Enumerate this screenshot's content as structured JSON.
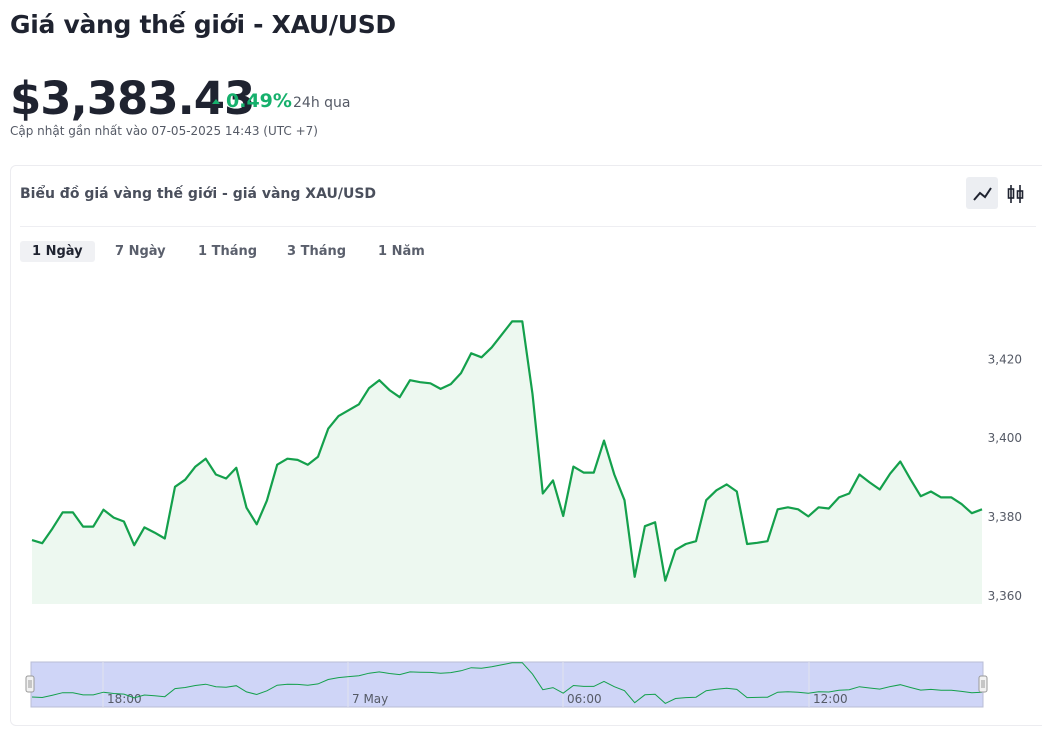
{
  "header": {
    "title": "Giá vàng thế giới - XAU/USD",
    "price": "$3,383.43",
    "change": "0.49%",
    "change_period": "24h qua",
    "updated": "Cập nhật gần nhất vào 07-05-2025 14:43 (UTC +7)"
  },
  "card": {
    "title": "Biểu đồ giá vàng thế giới - giá vàng XAU/USD",
    "tabs": [
      "1 Ngày",
      "7 Ngày",
      "1 Tháng",
      "3 Tháng",
      "1 Năm"
    ],
    "active_tab": 0
  },
  "chart_data": {
    "type": "line",
    "color": "#14a04c",
    "area": true,
    "values": [
      3374.2,
      3373.4,
      3377.1,
      3381.2,
      3381.2,
      3377.6,
      3377.6,
      3381.9,
      3379.9,
      3378.9,
      3372.9,
      3377.4,
      3376.1,
      3374.6,
      3387.7,
      3389.5,
      3392.8,
      3394.8,
      3390.8,
      3389.8,
      3392.5,
      3382.4,
      3378.2,
      3384.2,
      3393.3,
      3394.8,
      3394.5,
      3393.3,
      3395.3,
      3402.4,
      3405.6,
      3407.1,
      3408.6,
      3412.7,
      3414.7,
      3412.2,
      3410.4,
      3414.7,
      3414.2,
      3413.9,
      3412.5,
      3413.7,
      3416.5,
      3421.5,
      3420.5,
      3423.0,
      3426.3,
      3429.6,
      3429.6,
      3411.2,
      3386.0,
      3389.3,
      3380.3,
      3392.8,
      3391.3,
      3391.3,
      3399.4,
      3390.8,
      3384.3,
      3364.9,
      3377.7,
      3378.7,
      3363.9,
      3371.7,
      3373.2,
      3373.9,
      3384.3,
      3386.8,
      3388.3,
      3386.5,
      3373.2,
      3373.5,
      3373.9,
      3382.0,
      3382.5,
      3382.0,
      3380.2,
      3382.5,
      3382.2,
      3385.0,
      3386.0,
      3390.8,
      3388.8,
      3387.0,
      3391.0,
      3394.1,
      3389.6,
      3385.3,
      3386.5,
      3385.0,
      3385.0,
      3383.3,
      3381.0,
      3382.0
    ],
    "ylim": [
      3358,
      3434
    ],
    "yticks": [
      {
        "value": 3360,
        "label": "3,360"
      },
      {
        "value": 3380,
        "label": "3,380"
      },
      {
        "value": 3400,
        "label": "3,400"
      },
      {
        "value": 3420,
        "label": "3,420"
      }
    ],
    "navigator_labels": [
      "18:00",
      "7 May",
      "06:00",
      "12:00"
    ]
  }
}
